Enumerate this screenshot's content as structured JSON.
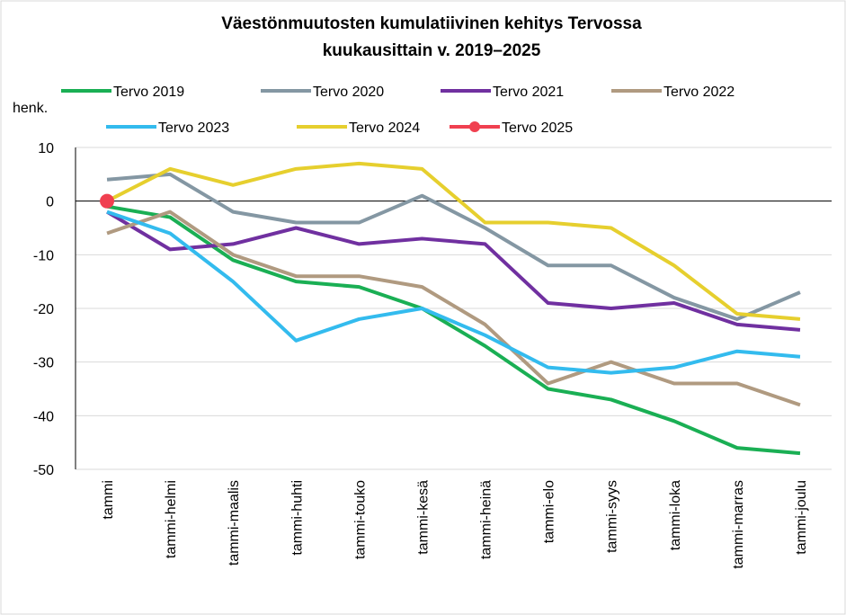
{
  "chart_data": {
    "type": "line",
    "title": [
      "Väestönmuutosten kumulatiivinen kehitys Tervossa",
      "kuukausittain v. 2019–2025"
    ],
    "y_label": "henk.",
    "categories": [
      "tammi",
      "tammi-helmi",
      "tammi-maalis",
      "tammi-huhti",
      "tammi-touko",
      "tammi-kesä",
      "tammi-heinä",
      "tammi-elo",
      "tammi-syys",
      "tammi-loka",
      "tammi-marras",
      "tammi-joulu"
    ],
    "series": [
      {
        "name": "Tervo 2019",
        "color": "#1aaf54",
        "values": [
          -1,
          -3,
          -11,
          -15,
          -16,
          -20,
          -27,
          -35,
          -37,
          -41,
          -46,
          -47
        ]
      },
      {
        "name": "Tervo 2020",
        "color": "#8497a3",
        "values": [
          4,
          5,
          -2,
          -4,
          -4,
          1,
          -5,
          -12,
          -12,
          -18,
          -22,
          -17
        ]
      },
      {
        "name": "Tervo 2021",
        "color": "#7030a0",
        "values": [
          -2,
          -9,
          -8,
          -5,
          -8,
          -7,
          -8,
          -19,
          -20,
          -19,
          -23,
          -24
        ]
      },
      {
        "name": "Tervo 2022",
        "color": "#b09a80",
        "values": [
          -6,
          -2,
          -10,
          -14,
          -14,
          -16,
          -23,
          -34,
          -30,
          -34,
          -34,
          -38
        ]
      },
      {
        "name": "Tervo 2023",
        "color": "#33bbee",
        "values": [
          -2,
          -6,
          -15,
          -26,
          -22,
          -20,
          -25,
          -31,
          -32,
          -31,
          -28,
          -29
        ]
      },
      {
        "name": "Tervo 2024",
        "color": "#e6cf2e",
        "values": [
          0,
          6,
          3,
          6,
          7,
          6,
          -4,
          -4,
          -5,
          -12,
          -21,
          -22
        ]
      },
      {
        "name": "Tervo 2025",
        "color": "#f04050",
        "marker": true,
        "values": [
          0,
          null,
          null,
          null,
          null,
          null,
          null,
          null,
          null,
          null,
          null,
          null
        ]
      }
    ],
    "ylim": [
      -50,
      10
    ],
    "yticks": [
      -50,
      -40,
      -30,
      -20,
      -10,
      0,
      10
    ],
    "grid": true
  }
}
